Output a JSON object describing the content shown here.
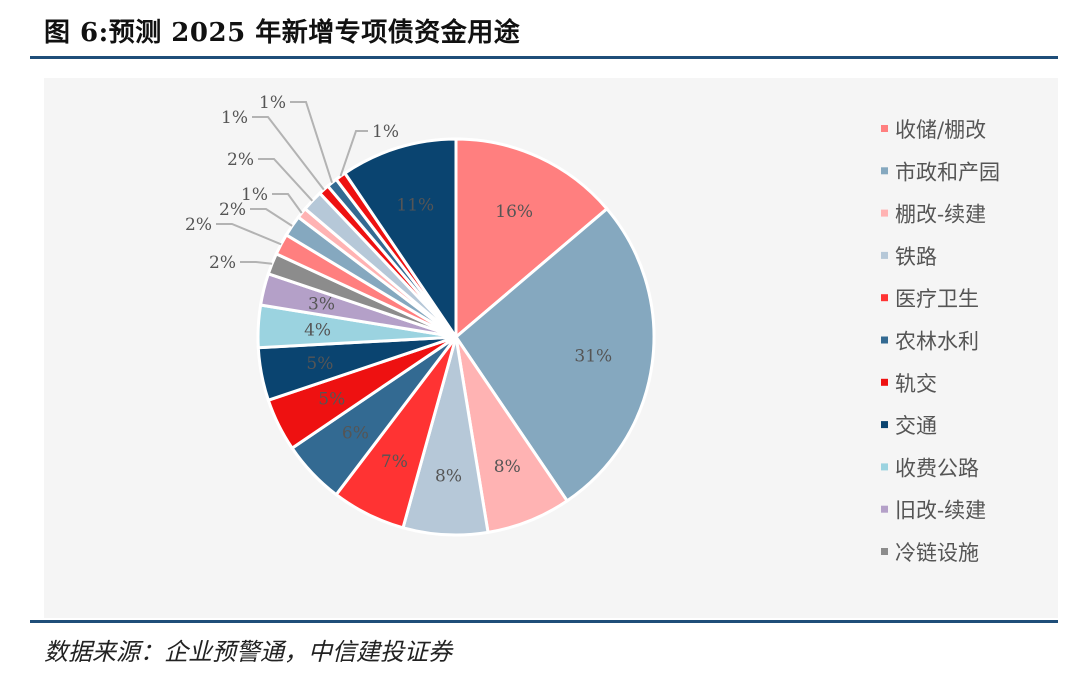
{
  "figure": {
    "title": "图 6:预测 2025 年新增专项债资金用途",
    "source": "数据来源：企业预警通，中信建投证券"
  },
  "chart_data": {
    "type": "pie",
    "legend_position": "right",
    "slices": [
      {
        "name": "收储/棚改",
        "label": "16%",
        "value": 16,
        "color": "#ff7f7f"
      },
      {
        "name": "市政和产园",
        "label": "31%",
        "value": 31,
        "color": "#85a8bf"
      },
      {
        "name": "棚改-续建",
        "label": "8%",
        "value": 8,
        "color": "#ffb3b3"
      },
      {
        "name": "铁路",
        "label": "8%",
        "value": 8,
        "color": "#b6c8d8"
      },
      {
        "name": "医疗卫生",
        "label": "7%",
        "value": 7,
        "color": "#ff3333"
      },
      {
        "name": "农林水利",
        "label": "6%",
        "value": 6,
        "color": "#336a92"
      },
      {
        "name": "轨交",
        "label": "5%",
        "value": 5,
        "color": "#ee1111"
      },
      {
        "name": "交通",
        "label": "5%",
        "value": 5,
        "color": "#0a4470"
      },
      {
        "name": "收费公路",
        "label": "4%",
        "value": 4,
        "color": "#9bd3e0"
      },
      {
        "name": "旧改-续建",
        "label": "3%",
        "value": 3,
        "color": "#b4a0c8"
      },
      {
        "name": "冷链设施",
        "label": "2%",
        "value": 2,
        "color": "#8c8c8c"
      },
      {
        "name": "",
        "label": "2%",
        "value": 2,
        "color": "#ff7f7f"
      },
      {
        "name": "",
        "label": "2%",
        "value": 2,
        "color": "#85a8bf"
      },
      {
        "name": "",
        "label": "1%",
        "value": 1,
        "color": "#ffb3b3"
      },
      {
        "name": "",
        "label": "2%",
        "value": 2,
        "color": "#b6c8d8"
      },
      {
        "name": "",
        "label": "1%",
        "value": 1,
        "color": "#ee1111"
      },
      {
        "name": "",
        "label": "1%",
        "value": 1,
        "color": "#336a92"
      },
      {
        "name": "",
        "label": "1%",
        "value": 1,
        "color": "#ee1111"
      },
      {
        "name": "",
        "label": "11%",
        "value": 11,
        "color": "#0a4470"
      }
    ]
  }
}
